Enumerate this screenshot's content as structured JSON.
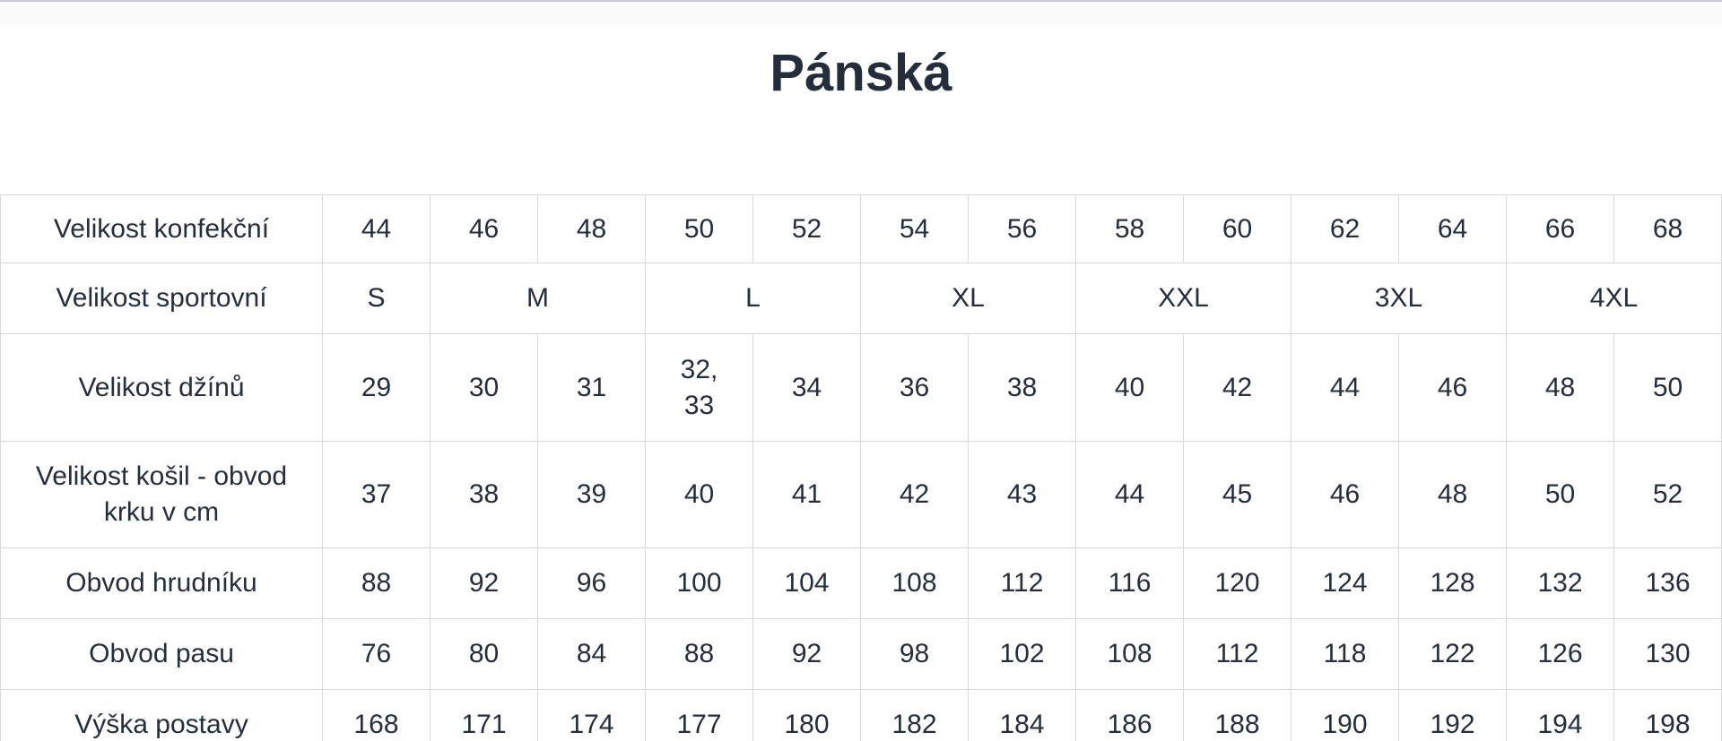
{
  "page": {
    "title": "Pánská"
  },
  "colors": {
    "text": "#242e3c",
    "border": "#d7dadd",
    "background": "#ffffff",
    "top_strip": "#fbfbfc"
  },
  "chart_data": {
    "type": "table",
    "title": "Pánská",
    "columns": 13,
    "rows": [
      {
        "label": "Velikost konfekční",
        "cells": [
          {
            "text": "44"
          },
          {
            "text": "46"
          },
          {
            "text": "48"
          },
          {
            "text": "50"
          },
          {
            "text": "52"
          },
          {
            "text": "54"
          },
          {
            "text": "56"
          },
          {
            "text": "58"
          },
          {
            "text": "60"
          },
          {
            "text": "62"
          },
          {
            "text": "64"
          },
          {
            "text": "66"
          },
          {
            "text": "68"
          }
        ]
      },
      {
        "label": "Velikost sportovní",
        "cells": [
          {
            "text": "S",
            "span": 1
          },
          {
            "text": "M",
            "span": 2
          },
          {
            "text": "L",
            "span": 2
          },
          {
            "text": "XL",
            "span": 2
          },
          {
            "text": "XXL",
            "span": 2
          },
          {
            "text": "3XL",
            "span": 2
          },
          {
            "text": "4XL",
            "span": 2
          }
        ]
      },
      {
        "label": "Velikost džínů",
        "cells": [
          {
            "text": "29"
          },
          {
            "text": "30"
          },
          {
            "text": "31"
          },
          {
            "text": "32,\n33"
          },
          {
            "text": "34"
          },
          {
            "text": "36"
          },
          {
            "text": "38"
          },
          {
            "text": "40"
          },
          {
            "text": "42"
          },
          {
            "text": "44"
          },
          {
            "text": "46"
          },
          {
            "text": "48"
          },
          {
            "text": "50"
          }
        ]
      },
      {
        "label": "Velikost košil - obvod\nkrku v cm",
        "cells": [
          {
            "text": "37"
          },
          {
            "text": "38"
          },
          {
            "text": "39"
          },
          {
            "text": "40"
          },
          {
            "text": "41"
          },
          {
            "text": "42"
          },
          {
            "text": "43"
          },
          {
            "text": "44"
          },
          {
            "text": "45"
          },
          {
            "text": "46"
          },
          {
            "text": "48"
          },
          {
            "text": "50"
          },
          {
            "text": "52"
          }
        ]
      },
      {
        "label": "Obvod hrudníku",
        "cells": [
          {
            "text": "88"
          },
          {
            "text": "92"
          },
          {
            "text": "96"
          },
          {
            "text": "100"
          },
          {
            "text": "104"
          },
          {
            "text": "108"
          },
          {
            "text": "112"
          },
          {
            "text": "116"
          },
          {
            "text": "120"
          },
          {
            "text": "124"
          },
          {
            "text": "128"
          },
          {
            "text": "132"
          },
          {
            "text": "136"
          }
        ]
      },
      {
        "label": "Obvod pasu",
        "cells": [
          {
            "text": "76"
          },
          {
            "text": "80"
          },
          {
            "text": "84"
          },
          {
            "text": "88"
          },
          {
            "text": "92"
          },
          {
            "text": "98"
          },
          {
            "text": "102"
          },
          {
            "text": "108"
          },
          {
            "text": "112"
          },
          {
            "text": "118"
          },
          {
            "text": "122"
          },
          {
            "text": "126"
          },
          {
            "text": "130"
          }
        ]
      },
      {
        "label": "Výška postavy",
        "cells": [
          {
            "text": "168"
          },
          {
            "text": "171"
          },
          {
            "text": "174"
          },
          {
            "text": "177"
          },
          {
            "text": "180"
          },
          {
            "text": "182"
          },
          {
            "text": "184"
          },
          {
            "text": "186"
          },
          {
            "text": "188"
          },
          {
            "text": "190"
          },
          {
            "text": "192"
          },
          {
            "text": "194"
          },
          {
            "text": "198"
          }
        ]
      }
    ]
  }
}
